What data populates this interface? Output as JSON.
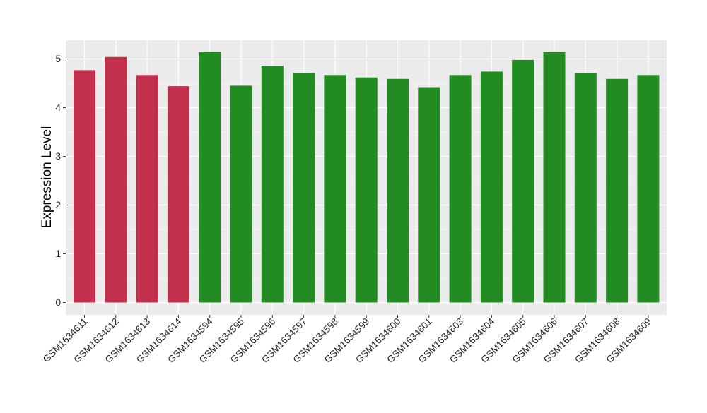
{
  "chart_data": {
    "type": "bar",
    "title": "",
    "xlabel": "",
    "ylabel": "Expression Level",
    "ylim": [
      0,
      5.4
    ],
    "yticks": [
      0,
      1,
      2,
      3,
      4,
      5
    ],
    "grid": true,
    "legend": "none",
    "colors": {
      "panel_background": "#ebebeb",
      "gridline": "#ffffff",
      "group_red": "#c3304b",
      "group_green": "#228b22"
    },
    "categories": [
      "GSM1634611",
      "GSM1634612",
      "GSM1634613",
      "GSM1634614",
      "GSM1634594",
      "GSM1634595",
      "GSM1634596",
      "GSM1634597",
      "GSM1634598",
      "GSM1634599",
      "GSM1634600",
      "GSM1634601",
      "GSM1634603",
      "GSM1634604",
      "GSM1634605",
      "GSM1634606",
      "GSM1634607",
      "GSM1634608",
      "GSM1634609"
    ],
    "values": [
      4.77,
      5.04,
      4.67,
      4.44,
      5.14,
      4.45,
      4.86,
      4.71,
      4.67,
      4.62,
      4.59,
      4.42,
      4.67,
      4.74,
      4.98,
      5.14,
      4.71,
      4.59,
      4.67
    ],
    "bar_groups": [
      "red",
      "red",
      "red",
      "red",
      "green",
      "green",
      "green",
      "green",
      "green",
      "green",
      "green",
      "green",
      "green",
      "green",
      "green",
      "green",
      "green",
      "green",
      "green"
    ]
  }
}
